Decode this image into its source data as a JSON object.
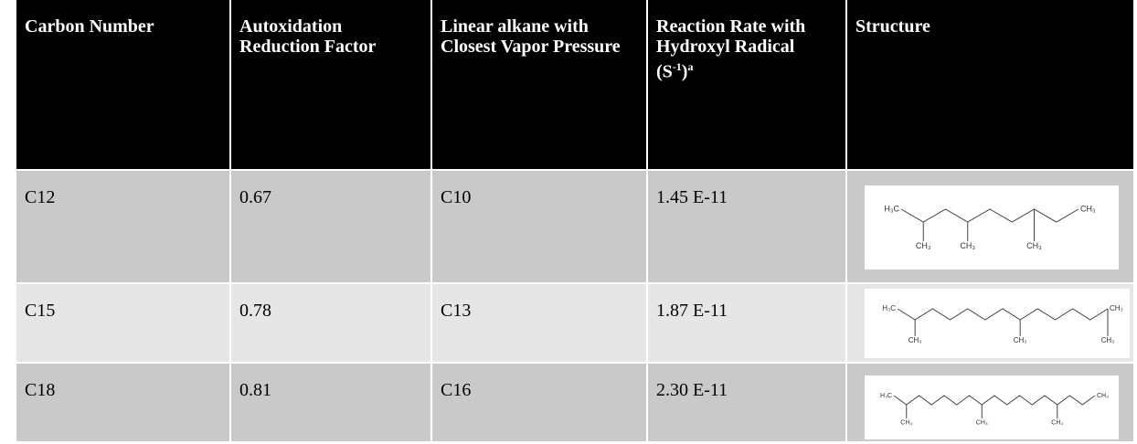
{
  "header": {
    "cells": [
      "Carbon Number",
      "Autoxidation Reduction Factor",
      "Linear alkane with Closest Vapor Pressure"
    ],
    "rate": {
      "text": "Reaction Rate with Hydroxyl Radical",
      "unit_open": "(S",
      "unit_exp": "-1",
      "unit_close": ")",
      "note": "a"
    },
    "structure": "Structure"
  },
  "rows": [
    {
      "cells": [
        "C12",
        "0.67",
        "C10",
        "1.45 E-11"
      ],
      "structure": [
        "H₃C",
        "CH₃",
        "CH₃",
        "CH₃",
        "CH₃"
      ]
    },
    {
      "cells": [
        "C15",
        "0.78",
        "C13",
        "1.87 E-11"
      ],
      "structure": [
        "H₃C",
        "CH₃",
        "CH₃",
        "CH₃",
        "CH₃"
      ]
    },
    {
      "cells": [
        "C18",
        "0.81",
        "C16",
        "2.30 E-11"
      ],
      "structure": [
        "H₃C",
        "CH₃",
        "CH₃",
        "CH₃",
        "CH₃"
      ]
    }
  ]
}
